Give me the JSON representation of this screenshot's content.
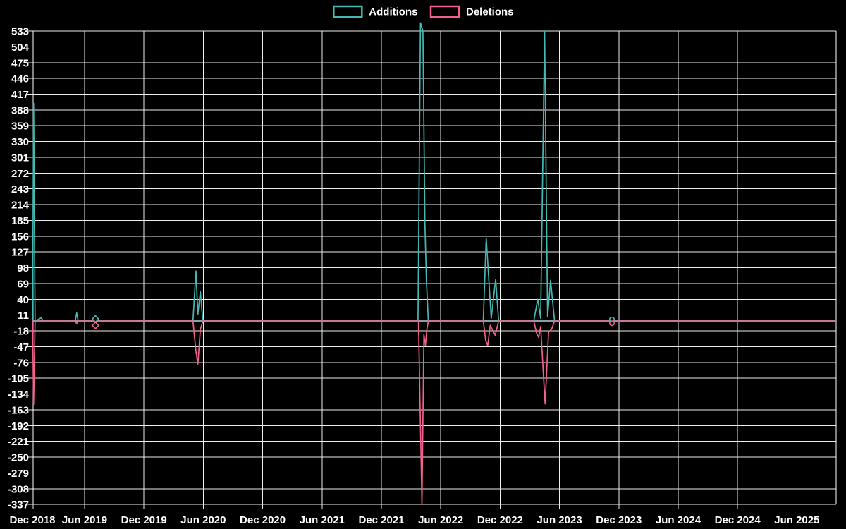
{
  "chart_data": {
    "type": "line",
    "title": "",
    "background_color": "#000000",
    "grid": true,
    "grid_color": "#ededed",
    "text_color": "#ffffff",
    "zero_line": {
      "show": true,
      "value": 0,
      "color": "#8c9da6"
    },
    "legend": {
      "position": "top-center",
      "items": [
        {
          "label": "Additions",
          "color": "#44b8b2"
        },
        {
          "label": "Deletions",
          "color": "#f2608c"
        }
      ]
    },
    "x_axis": {
      "unit": "months since Dec 2018",
      "tick_interval_months": 6,
      "tick_labels": [
        "Dec 2018",
        "Jun 2019",
        "Dec 2019",
        "Jun 2020",
        "Dec 2020",
        "Jun 2021",
        "Dec 2021",
        "Jun 2022",
        "Dec 2022",
        "Jun 2023",
        "Dec 2023",
        "Jun 2024",
        "Dec 2024",
        "Jun 2025"
      ],
      "range_months": [
        0,
        81.9
      ]
    },
    "y_axis": {
      "min": -337,
      "max": 533,
      "step": 29,
      "ticks": [
        533,
        504,
        475,
        446,
        417,
        388,
        359,
        330,
        301,
        272,
        243,
        214,
        185,
        156,
        127,
        98,
        69,
        40,
        11,
        -18,
        -47,
        -76,
        -105,
        -134,
        -163,
        -192,
        -221,
        -250,
        -279,
        -308,
        -337
      ]
    },
    "series": [
      {
        "name": "Additions",
        "color": "#44b8b2",
        "points": [
          [
            0.75,
            0
          ],
          [
            0.85,
            400
          ],
          [
            1.0,
            0
          ],
          [
            1.6,
            6
          ],
          [
            1.85,
            0
          ],
          [
            5.05,
            0
          ],
          [
            5.2,
            15
          ],
          [
            5.35,
            0
          ],
          [
            7.05,
            0
          ],
          [
            7.1,
            4
          ],
          [
            7.15,
            0
          ],
          [
            16.95,
            0
          ],
          [
            17.25,
            92
          ],
          [
            17.45,
            13
          ],
          [
            17.7,
            54
          ],
          [
            17.95,
            0
          ],
          [
            39.7,
            0
          ],
          [
            39.95,
            548
          ],
          [
            40.2,
            533
          ],
          [
            40.4,
            180
          ],
          [
            40.55,
            75
          ],
          [
            40.75,
            0
          ],
          [
            46.3,
            0
          ],
          [
            46.6,
            152
          ],
          [
            47.1,
            5
          ],
          [
            47.55,
            77
          ],
          [
            47.85,
            0
          ],
          [
            51.4,
            0
          ],
          [
            51.8,
            40
          ],
          [
            52.1,
            5
          ],
          [
            52.5,
            533
          ],
          [
            52.8,
            8
          ],
          [
            53.1,
            75
          ],
          [
            53.5,
            0
          ],
          [
            59.25,
            0
          ],
          [
            59.3,
            3
          ],
          [
            59.35,
            0
          ],
          [
            81.9,
            0
          ]
        ]
      },
      {
        "name": "Deletions",
        "color": "#f2608c",
        "points": [
          [
            0.75,
            0
          ],
          [
            0.85,
            -153
          ],
          [
            1.0,
            0
          ],
          [
            5.05,
            0
          ],
          [
            5.2,
            -5
          ],
          [
            5.35,
            0
          ],
          [
            7.05,
            0
          ],
          [
            7.1,
            -8
          ],
          [
            7.15,
            0
          ],
          [
            16.95,
            0
          ],
          [
            17.25,
            -55
          ],
          [
            17.45,
            -79
          ],
          [
            17.7,
            -15
          ],
          [
            17.95,
            0
          ],
          [
            39.75,
            0
          ],
          [
            39.95,
            -192
          ],
          [
            40.1,
            -337
          ],
          [
            40.3,
            -25
          ],
          [
            40.45,
            -45
          ],
          [
            40.6,
            -15
          ],
          [
            40.75,
            0
          ],
          [
            46.3,
            0
          ],
          [
            46.55,
            -36
          ],
          [
            46.75,
            -45
          ],
          [
            47.0,
            -8
          ],
          [
            47.5,
            -26
          ],
          [
            47.85,
            0
          ],
          [
            51.4,
            0
          ],
          [
            51.7,
            -23
          ],
          [
            51.9,
            -30
          ],
          [
            52.1,
            -10
          ],
          [
            52.4,
            -105
          ],
          [
            52.55,
            -152
          ],
          [
            52.9,
            -20
          ],
          [
            53.2,
            -15
          ],
          [
            53.5,
            0
          ],
          [
            59.25,
            0
          ],
          [
            59.3,
            -4
          ],
          [
            59.35,
            0
          ],
          [
            81.9,
            0
          ]
        ]
      }
    ],
    "isolated_markers": [
      {
        "shape": "diamond",
        "series": "Additions",
        "month": 7.1,
        "value": 4
      },
      {
        "shape": "diamond",
        "series": "Deletions",
        "month": 7.1,
        "value": -8
      },
      {
        "shape": "circle",
        "series": "Additions",
        "month": 59.3,
        "value": 3
      },
      {
        "shape": "circle",
        "series": "Deletions",
        "month": 59.3,
        "value": -4
      }
    ]
  }
}
